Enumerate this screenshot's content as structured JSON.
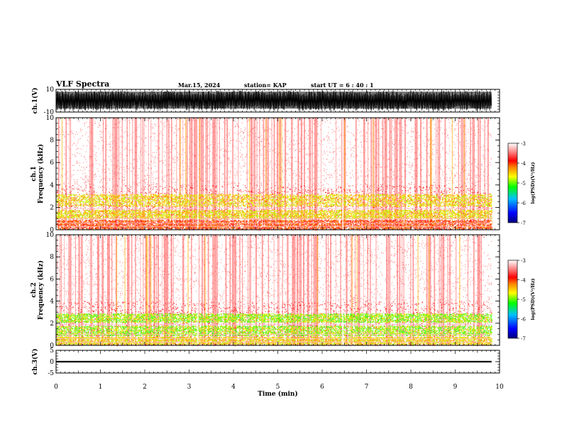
{
  "header": {
    "title": "VLF Spectra",
    "date": "Mar.15, 2024",
    "station": "station= KAP",
    "start": "start  UT  =   6 : 40 : 1"
  },
  "chart_data": [
    {
      "type": "line",
      "name": "waveform-ch1",
      "ylabel": "ch.1(V)",
      "ylim": [
        -10,
        10
      ],
      "yticks": [
        {
          "v": 10,
          "label": "10"
        },
        {
          "v": -10,
          "label": "-10"
        }
      ],
      "xlim": [
        0,
        10
      ],
      "data_end_min": 9.82,
      "amplitude": "saturating, fills approx -8 to 9 V"
    },
    {
      "type": "heatmap",
      "name": "spectrogram-ch1",
      "ylabel": "ch.1\nFrequency  (kHz)",
      "ylim": [
        0,
        10
      ],
      "yticks": [
        {
          "v": 0,
          "label": "0"
        },
        {
          "v": 2,
          "label": "2"
        },
        {
          "v": 4,
          "label": "4"
        },
        {
          "v": 6,
          "label": "6"
        },
        {
          "v": 8,
          "label": "8"
        },
        {
          "v": 10,
          "label": "10"
        }
      ],
      "xlim": [
        0,
        10
      ],
      "data_end_min": 9.82,
      "bands_khz": [
        {
          "lo": 1.0,
          "hi": 1.8,
          "level": "yellow"
        },
        {
          "lo": 2.1,
          "hi": 3.2,
          "level": "yellow"
        },
        {
          "lo": 0.1,
          "hi": 0.9,
          "level": "red"
        }
      ],
      "colorbar": {
        "label": "log(PSD)(V²/Hz)",
        "range": [
          -7,
          -3
        ],
        "ticks": [
          {
            "v": -3,
            "label": "-3"
          },
          {
            "v": -4,
            "label": "-4"
          },
          {
            "v": -5,
            "label": "-5"
          },
          {
            "v": -6,
            "label": "-6"
          },
          {
            "v": -7,
            "label": "-7"
          }
        ]
      }
    },
    {
      "type": "heatmap",
      "name": "spectrogram-ch2",
      "ylabel": "ch.2\nFrequency  (kHz)",
      "ylim": [
        0,
        10
      ],
      "yticks": [
        {
          "v": 0,
          "label": "0"
        },
        {
          "v": 2,
          "label": "2"
        },
        {
          "v": 4,
          "label": "4"
        },
        {
          "v": 6,
          "label": "6"
        },
        {
          "v": 8,
          "label": "8"
        },
        {
          "v": 10,
          "label": "10"
        }
      ],
      "xlim": [
        0,
        10
      ],
      "data_end_min": 9.82,
      "bands_khz": [
        {
          "lo": 0.9,
          "hi": 1.8,
          "level": "green"
        },
        {
          "lo": 2.1,
          "hi": 2.9,
          "level": "green"
        },
        {
          "lo": 0.1,
          "hi": 0.8,
          "level": "yellow"
        }
      ],
      "colorbar": {
        "label": "log(PSD)(V²/Hz)",
        "range": [
          -7,
          -3
        ],
        "ticks": [
          {
            "v": -3,
            "label": "-3"
          },
          {
            "v": -4,
            "label": "-4"
          },
          {
            "v": -5,
            "label": "-5"
          },
          {
            "v": -6,
            "label": "-6"
          },
          {
            "v": -7,
            "label": "-7"
          }
        ]
      }
    },
    {
      "type": "line",
      "name": "waveform-ch3",
      "ylabel": "ch.3(V)",
      "ylim": [
        -5,
        5
      ],
      "yticks": [
        {
          "v": 5,
          "label": "5"
        },
        {
          "v": 0,
          "label": "0"
        },
        {
          "v": -5,
          "label": "-5"
        }
      ],
      "xlim": [
        0,
        10
      ],
      "data_end_min": 9.82,
      "amplitude": "narrow band approx -0.3 to 0.3 V"
    }
  ],
  "xaxis": {
    "label": "Time  (min)",
    "ticks": [
      {
        "v": 0,
        "label": "0"
      },
      {
        "v": 1,
        "label": "1"
      },
      {
        "v": 2,
        "label": "2"
      },
      {
        "v": 3,
        "label": "3"
      },
      {
        "v": 4,
        "label": "4"
      },
      {
        "v": 5,
        "label": "5"
      },
      {
        "v": 6,
        "label": "6"
      },
      {
        "v": 7,
        "label": "7"
      },
      {
        "v": 8,
        "label": "8"
      },
      {
        "v": 9,
        "label": "9"
      },
      {
        "v": 10,
        "label": "10"
      }
    ]
  },
  "colors": {
    "axis": "#000000",
    "colormap": [
      "#00008c",
      "#0000ff",
      "#00c8ff",
      "#00ff00",
      "#c8ff00",
      "#ffff00",
      "#ff8000",
      "#ff0000",
      "#ffd0d0",
      "#ffffff"
    ]
  }
}
